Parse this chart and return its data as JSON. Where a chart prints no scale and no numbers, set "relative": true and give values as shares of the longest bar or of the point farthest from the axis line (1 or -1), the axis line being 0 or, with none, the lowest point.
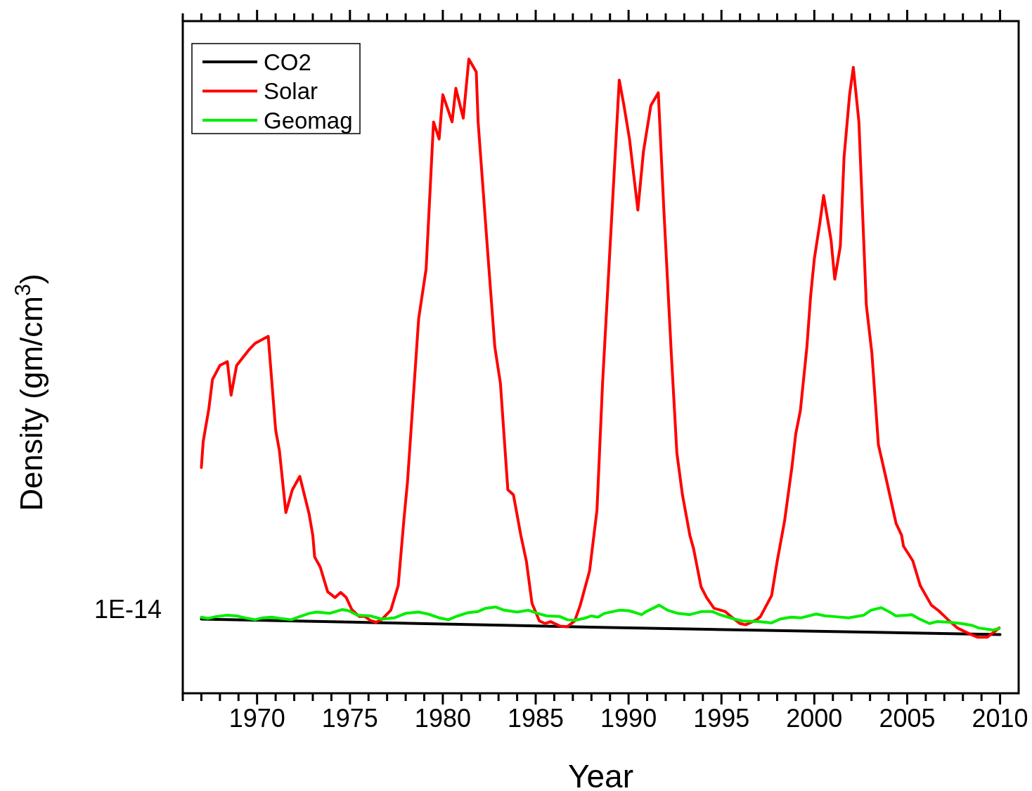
{
  "chart_data": {
    "type": "line",
    "xlabel": "Year",
    "ylabel": "Density (gm/cm$^{3}$)",
    "relative": true,
    "xlim": [
      1966,
      2011
    ],
    "xticks": [
      {
        "value": 1966,
        "label": null
      },
      {
        "value": 1967,
        "label": null
      },
      {
        "value": 1968,
        "label": null
      },
      {
        "value": 1969,
        "label": null
      },
      1970,
      {
        "value": 1971,
        "label": null
      },
      {
        "value": 1972,
        "label": null
      },
      {
        "value": 1973,
        "label": null
      },
      {
        "value": 1974,
        "label": null
      },
      1975,
      {
        "value": 1976,
        "label": null
      },
      {
        "value": 1977,
        "label": null
      },
      {
        "value": 1978,
        "label": null
      },
      {
        "value": 1979,
        "label": null
      },
      1980,
      {
        "value": 1981,
        "label": null
      },
      {
        "value": 1982,
        "label": null
      },
      {
        "value": 1983,
        "label": null
      },
      {
        "value": 1984,
        "label": null
      },
      1985,
      {
        "value": 1986,
        "label": null
      },
      {
        "value": 1987,
        "label": null
      },
      {
        "value": 1988,
        "label": null
      },
      {
        "value": 1989,
        "label": null
      },
      1990,
      {
        "value": 1991,
        "label": null
      },
      {
        "value": 1992,
        "label": null
      },
      {
        "value": 1993,
        "label": null
      },
      {
        "value": 1994,
        "label": null
      },
      1995,
      {
        "value": 1996,
        "label": null
      },
      {
        "value": 1997,
        "label": null
      },
      {
        "value": 1998,
        "label": null
      },
      {
        "value": 1999,
        "label": null
      },
      2000,
      {
        "value": 2001,
        "label": null
      },
      {
        "value": 2002,
        "label": null
      },
      {
        "value": 2003,
        "label": null
      },
      {
        "value": 2004,
        "label": null
      },
      2005,
      {
        "value": 2006,
        "label": null
      },
      {
        "value": 2007,
        "label": null
      },
      {
        "value": 2008,
        "label": null
      },
      {
        "value": 2009,
        "label": null
      },
      2010
    ],
    "annotations": [
      "1E-14"
    ],
    "grid": false,
    "legend": "top left",
    "marker": "none",
    "line_style": "solid",
    "series": [
      {
        "name": "CO2",
        "color": "#000000",
        "x": [
          1967,
          1988.5,
          2010
        ],
        "values": [
          0.117,
          0.104,
          0.0926
        ]
      },
      {
        "name": "Solar",
        "color": "#ff0000",
        "x": [
          1967.0,
          1967.1,
          1967.4,
          1967.6,
          1968.0,
          1968.4,
          1968.6,
          1968.9,
          1969.6,
          1969.9,
          1970.6,
          1971.0,
          1971.2,
          1971.55,
          1971.9,
          1972.3,
          1972.8,
          1973.0,
          1973.1,
          1973.4,
          1973.8,
          1974.2,
          1974.5,
          1974.8,
          1975.1,
          1975.5,
          1975.8,
          1976.1,
          1976.4,
          1976.7,
          1977.2,
          1977.6,
          1977.9,
          1978.1,
          1978.7,
          1979.1,
          1979.5,
          1979.8,
          1980.0,
          1980.5,
          1980.7,
          1981.1,
          1981.4,
          1981.8,
          1981.9,
          1982.4,
          1982.8,
          1983.1,
          1983.5,
          1983.8,
          1984.2,
          1984.5,
          1984.8,
          1985.2,
          1985.5,
          1985.8,
          1986.3,
          1986.7,
          1987.1,
          1987.4,
          1987.9,
          1988.3,
          1988.6,
          1989.0,
          1989.5,
          1989.75,
          1990.05,
          1990.5,
          1990.8,
          1991.2,
          1991.6,
          1991.9,
          1992.3,
          1992.6,
          1992.9,
          1993.3,
          1993.5,
          1993.9,
          1994.2,
          1994.6,
          1995.2,
          1995.6,
          1996.0,
          1996.3,
          1996.9,
          1997.1,
          1997.7,
          1998.0,
          1998.4,
          1998.8,
          1999.0,
          1999.25,
          1999.6,
          1999.8,
          2000.0,
          2000.3,
          2000.5,
          2000.9,
          2001.1,
          2001.4,
          2001.6,
          2001.9,
          2002.1,
          2002.4,
          2002.8,
          2003.1,
          2003.45,
          2003.9,
          2004.4,
          2004.7,
          2004.8,
          2005.3,
          2005.7,
          2006.3,
          2006.7,
          2007.2,
          2007.7,
          2008.3,
          2008.8,
          2009.3,
          2009.65,
          2009.95
        ],
        "values": [
          0.356,
          0.397,
          0.448,
          0.495,
          0.517,
          0.523,
          0.47,
          0.517,
          0.543,
          0.552,
          0.563,
          0.415,
          0.383,
          0.285,
          0.321,
          0.342,
          0.283,
          0.249,
          0.215,
          0.199,
          0.16,
          0.151,
          0.159,
          0.151,
          0.132,
          0.121,
          0.121,
          0.115,
          0.112,
          0.116,
          0.131,
          0.17,
          0.272,
          0.334,
          0.591,
          0.669,
          0.901,
          0.874,
          0.944,
          0.901,
          0.954,
          0.907,
          1,
          0.98,
          0.901,
          0.702,
          0.546,
          0.489,
          0.321,
          0.313,
          0.249,
          0.208,
          0.142,
          0.114,
          0.11,
          0.113,
          0.106,
          0.105,
          0.114,
          0.139,
          0.193,
          0.289,
          0.489,
          0.702,
          0.967,
          0.927,
          0.874,
          0.762,
          0.854,
          0.927,
          0.947,
          0.762,
          0.536,
          0.379,
          0.313,
          0.249,
          0.228,
          0.168,
          0.151,
          0.134,
          0.129,
          0.119,
          0.11,
          0.108,
          0.116,
          0.121,
          0.154,
          0.208,
          0.272,
          0.358,
          0.409,
          0.446,
          0.546,
          0.626,
          0.685,
          0.742,
          0.785,
          0.715,
          0.653,
          0.705,
          0.845,
          0.944,
          0.987,
          0.901,
          0.612,
          0.536,
          0.392,
          0.334,
          0.268,
          0.249,
          0.232,
          0.209,
          0.17,
          0.139,
          0.13,
          0.116,
          0.103,
          0.0944,
          0.0883,
          0.0883,
          0.096,
          0.103
        ]
      },
      {
        "name": "Geomag",
        "color": "#00ee00",
        "x": [
          1967.0,
          1967.35,
          1967.8,
          1968.4,
          1968.9,
          1969.5,
          1969.9,
          1970.3,
          1970.8,
          1971.2,
          1971.85,
          1972.2,
          1972.8,
          1973.2,
          1973.9,
          1974.6,
          1974.95,
          1975.4,
          1976.1,
          1976.7,
          1977.4,
          1978.0,
          1978.7,
          1979.2,
          1979.8,
          1980.3,
          1980.8,
          1981.35,
          1981.9,
          1982.3,
          1982.85,
          1983.3,
          1984.0,
          1984.6,
          1985.1,
          1985.6,
          1986.3,
          1986.7,
          1987.1,
          1987.6,
          1988.0,
          1988.35,
          1988.7,
          1989.5,
          1990.05,
          1990.7,
          1990.9,
          1991.65,
          1992.1,
          1992.65,
          1993.3,
          1993.95,
          1994.5,
          1994.9,
          1995.7,
          1996.15,
          1997.0,
          1997.7,
          1998.15,
          1998.75,
          1999.3,
          2000.1,
          2000.6,
          2001.05,
          2001.85,
          2002.65,
          2003.05,
          2003.6,
          2004.0,
          2004.4,
          2004.95,
          2005.25,
          2005.6,
          2006.2,
          2006.6,
          2007.3,
          2007.9,
          2008.5,
          2008.85,
          2009.6,
          2009.95
        ],
        "values": [
          0.12,
          0.118,
          0.121,
          0.123,
          0.122,
          0.118,
          0.116,
          0.119,
          0.12,
          0.118,
          0.116,
          0.12,
          0.126,
          0.128,
          0.126,
          0.132,
          0.13,
          0.123,
          0.122,
          0.117,
          0.119,
          0.126,
          0.128,
          0.125,
          0.119,
          0.116,
          0.122,
          0.127,
          0.129,
          0.134,
          0.136,
          0.131,
          0.128,
          0.131,
          0.126,
          0.122,
          0.121,
          0.116,
          0.115,
          0.118,
          0.122,
          0.12,
          0.126,
          0.131,
          0.13,
          0.124,
          0.128,
          0.139,
          0.131,
          0.126,
          0.124,
          0.129,
          0.129,
          0.124,
          0.117,
          0.114,
          0.113,
          0.111,
          0.117,
          0.12,
          0.119,
          0.125,
          0.122,
          0.121,
          0.119,
          0.123,
          0.131,
          0.135,
          0.129,
          0.122,
          0.123,
          0.124,
          0.118,
          0.11,
          0.113,
          0.112,
          0.11,
          0.107,
          0.103,
          0.0997,
          0.102
        ]
      }
    ]
  }
}
